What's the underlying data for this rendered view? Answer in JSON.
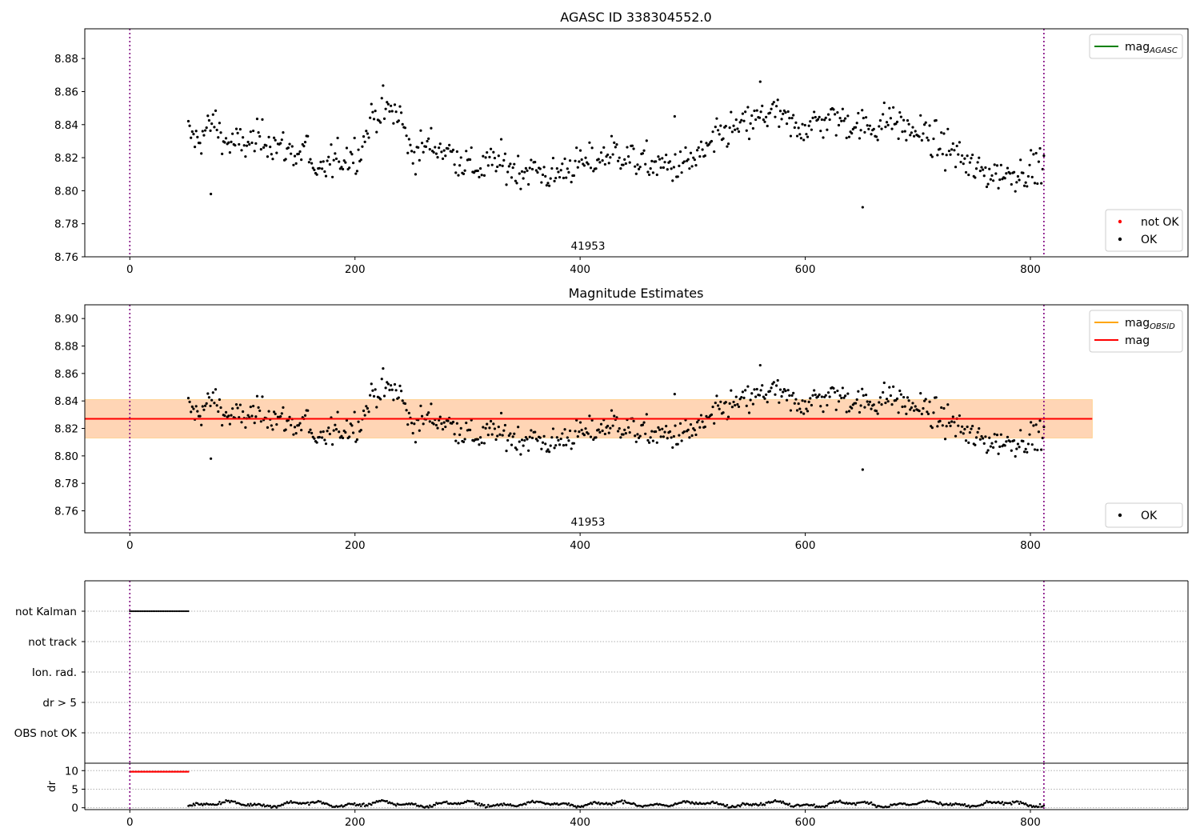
{
  "chart_data": [
    {
      "id": "panel1",
      "type": "scatter",
      "title": "AGASC ID 338304552.0",
      "xlim": [
        -40,
        940
      ],
      "ylim": [
        8.76,
        8.898
      ],
      "xticks": [
        0,
        200,
        400,
        600,
        800
      ],
      "yticks": [
        8.76,
        8.78,
        8.8,
        8.82,
        8.84,
        8.86,
        8.88
      ],
      "vlines": [
        0,
        812
      ],
      "obsid_label": {
        "text": "41953",
        "x": 407
      },
      "legends": [
        {
          "position": "upper right",
          "entries": [
            {
              "label": "mag",
              "sub": "AGASC",
              "kind": "line",
              "color": "#008000"
            }
          ]
        },
        {
          "position": "lower right",
          "entries": [
            {
              "label": "not OK",
              "kind": "dot",
              "color": "#ff0000"
            },
            {
              "label": "OK",
              "kind": "dot",
              "color": "#000000"
            }
          ]
        }
      ],
      "series": [
        {
          "name": "OK",
          "color": "#000000",
          "x_range": [
            52,
            812
          ],
          "count": 660
        }
      ]
    },
    {
      "id": "panel2",
      "type": "scatter",
      "title": "Magnitude Estimates",
      "xlim": [
        -40,
        940
      ],
      "ylim": [
        8.744,
        8.91
      ],
      "xticks": [
        0,
        200,
        400,
        600,
        800
      ],
      "yticks": [
        8.76,
        8.78,
        8.8,
        8.82,
        8.84,
        8.86,
        8.88,
        8.9
      ],
      "vlines": [
        0,
        812
      ],
      "obsid_label": {
        "text": "41953",
        "x": 407
      },
      "mag_line": 8.827,
      "band": {
        "lo": 8.813,
        "hi": 8.841,
        "x_range": [
          -40,
          855
        ]
      },
      "legends": [
        {
          "position": "upper right",
          "entries": [
            {
              "label": "mag",
              "sub": "OBSID",
              "kind": "line",
              "color": "#ffa500"
            },
            {
              "label": "mag",
              "kind": "line",
              "color": "#ff0000"
            }
          ]
        },
        {
          "position": "lower right",
          "entries": [
            {
              "label": "OK",
              "kind": "dot",
              "color": "#000000"
            }
          ]
        }
      ],
      "series": [
        {
          "name": "OK",
          "color": "#000000",
          "x_range": [
            52,
            812
          ],
          "count": 660
        }
      ]
    },
    {
      "id": "panel3",
      "type": "scatter",
      "xlim": [
        -40,
        940
      ],
      "categories": [
        "not Kalman",
        "not track",
        "Ion. rad.",
        "dr > 5",
        "OBS not OK"
      ],
      "vlines": [
        0,
        812
      ],
      "flag_series": [
        {
          "category": "not Kalman",
          "x_range": [
            0,
            52
          ],
          "color": "#000000"
        }
      ]
    },
    {
      "id": "panel4",
      "type": "scatter",
      "xlim": [
        -40,
        940
      ],
      "ylim": [
        -0.5,
        12
      ],
      "xticks": [
        0,
        200,
        400,
        600,
        800
      ],
      "yticks": [
        0,
        5,
        10
      ],
      "ylabel": "dr",
      "vlines": [
        0,
        812
      ],
      "series": [
        {
          "name": "dr high",
          "color": "#ff0000",
          "x_range": [
            0,
            52
          ],
          "value": 9.7
        },
        {
          "name": "dr",
          "color": "#000000",
          "x_range": [
            52,
            812
          ],
          "count": 660
        }
      ]
    }
  ]
}
